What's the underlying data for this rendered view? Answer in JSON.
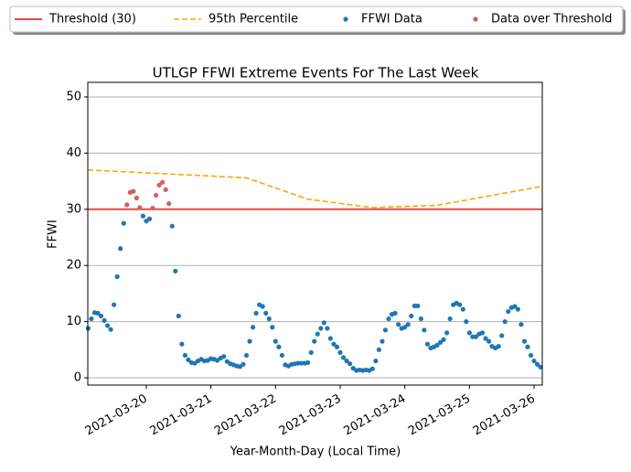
{
  "chart_data": {
    "type": "scatter",
    "title": "UTLGP FFWI Extreme Events For The Last Week",
    "x_label": "Year-Month-Day (Local Time)",
    "y_label": "FFWI",
    "xlim": [
      0.095,
      7.127
    ],
    "ylim": [
      -1.3,
      52.6
    ],
    "xticks": [
      {
        "value": 1,
        "label": "2021-03-20"
      },
      {
        "value": 2,
        "label": "2021-03-21"
      },
      {
        "value": 3,
        "label": "2021-03-22"
      },
      {
        "value": 4,
        "label": "2021-03-23"
      },
      {
        "value": 5,
        "label": "2021-03-24"
      },
      {
        "value": 6,
        "label": "2021-03-25"
      },
      {
        "value": 7,
        "label": "2021-03-26"
      }
    ],
    "yticks": [
      0,
      10,
      20,
      30,
      40,
      50
    ],
    "grid": "y",
    "legend": "top",
    "series": [
      {
        "name": "Threshold (30)",
        "type": "hline",
        "color": "#e24a4a",
        "value": 30
      },
      {
        "name": "95th Percentile",
        "type": "line",
        "style": "dashed",
        "color": "#ffa500",
        "x": [
          0.095,
          2.55,
          3.5,
          4.5,
          5.5,
          7.127
        ],
        "values": [
          37,
          35.6,
          31.8,
          30.3,
          30.7,
          34.1
        ]
      },
      {
        "name": "FFWI Data",
        "type": "scatter",
        "color": "#1f77b4",
        "x": [
          0.1,
          0.15,
          0.2,
          0.25,
          0.3,
          0.35,
          0.4,
          0.45,
          0.5,
          0.55,
          0.6,
          0.65,
          0.95,
          1.0,
          1.05,
          1.4,
          1.45,
          1.5,
          1.55,
          1.6,
          1.65,
          1.7,
          1.75,
          1.8,
          1.85,
          1.9,
          1.95,
          2.0,
          2.05,
          2.1,
          2.15,
          2.2,
          2.25,
          2.3,
          2.35,
          2.4,
          2.45,
          2.5,
          2.55,
          2.6,
          2.65,
          2.7,
          2.75,
          2.8,
          2.85,
          2.9,
          2.95,
          3.0,
          3.05,
          3.1,
          3.15,
          3.2,
          3.25,
          3.3,
          3.35,
          3.4,
          3.45,
          3.5,
          3.55,
          3.6,
          3.65,
          3.7,
          3.75,
          3.8,
          3.85,
          3.9,
          3.95,
          4.0,
          4.05,
          4.1,
          4.15,
          4.2,
          4.25,
          4.3,
          4.35,
          4.4,
          4.45,
          4.5,
          4.55,
          4.6,
          4.65,
          4.7,
          4.75,
          4.8,
          4.85,
          4.9,
          4.95,
          5.0,
          5.05,
          5.1,
          5.15,
          5.2,
          5.25,
          5.3,
          5.35,
          5.4,
          5.45,
          5.5,
          5.55,
          5.6,
          5.65,
          5.7,
          5.75,
          5.8,
          5.85,
          5.9,
          5.95,
          6.0,
          6.05,
          6.1,
          6.15,
          6.2,
          6.25,
          6.3,
          6.35,
          6.4,
          6.45,
          6.5,
          6.55,
          6.6,
          6.65,
          6.7,
          6.75,
          6.8,
          6.85,
          6.9,
          6.95,
          7.0,
          7.05,
          7.1
        ],
        "values": [
          8.8,
          10.5,
          11.6,
          11.5,
          11,
          10.2,
          9.3,
          8.6,
          13,
          18,
          23,
          27.5,
          28.8,
          27.9,
          28.3,
          27,
          19,
          11,
          6,
          4,
          3.2,
          2.7,
          2.6,
          3,
          3.3,
          3,
          3.1,
          3.4,
          3.3,
          3.1,
          3.5,
          3.8,
          2.9,
          2.5,
          2.3,
          2.1,
          2,
          2.4,
          4,
          6.5,
          9,
          11.5,
          13,
          12.7,
          11.5,
          10.5,
          9,
          6.5,
          5.5,
          4,
          2.3,
          2.1,
          2.4,
          2.5,
          2.6,
          2.6,
          2.6,
          2.7,
          4.5,
          6.5,
          7.8,
          8.8,
          9.8,
          8.8,
          7,
          6,
          5.5,
          4.5,
          3.6,
          3,
          2.5,
          1.7,
          1.3,
          1.4,
          1.3,
          1.4,
          1.3,
          1.6,
          3,
          5,
          6.5,
          8.5,
          10.5,
          11.3,
          11.5,
          9.5,
          8.8,
          9,
          9.5,
          11,
          12.8,
          12.8,
          10.5,
          8.5,
          6,
          5.3,
          5.5,
          5.8,
          6.3,
          6.8,
          8,
          10.5,
          13,
          13.3,
          13,
          12.2,
          10,
          8,
          7.3,
          7.3,
          7.8,
          8,
          7,
          6.5,
          5.6,
          5.3,
          5.6,
          7.5,
          10,
          11.8,
          12.5,
          12.7,
          12.2,
          9.5,
          6.5,
          5.5,
          4,
          3,
          2.4,
          1.9
        ]
      },
      {
        "name": "Data over Threshold",
        "type": "scatter",
        "color": "#d1605e",
        "x": [
          0.7,
          0.75,
          0.8,
          0.85,
          0.9,
          1.1,
          1.15,
          1.2,
          1.25,
          1.3,
          1.35
        ],
        "values": [
          30.8,
          33,
          33.2,
          32,
          30.3,
          30.2,
          32.5,
          34.3,
          34.8,
          33.5,
          31
        ]
      }
    ]
  }
}
